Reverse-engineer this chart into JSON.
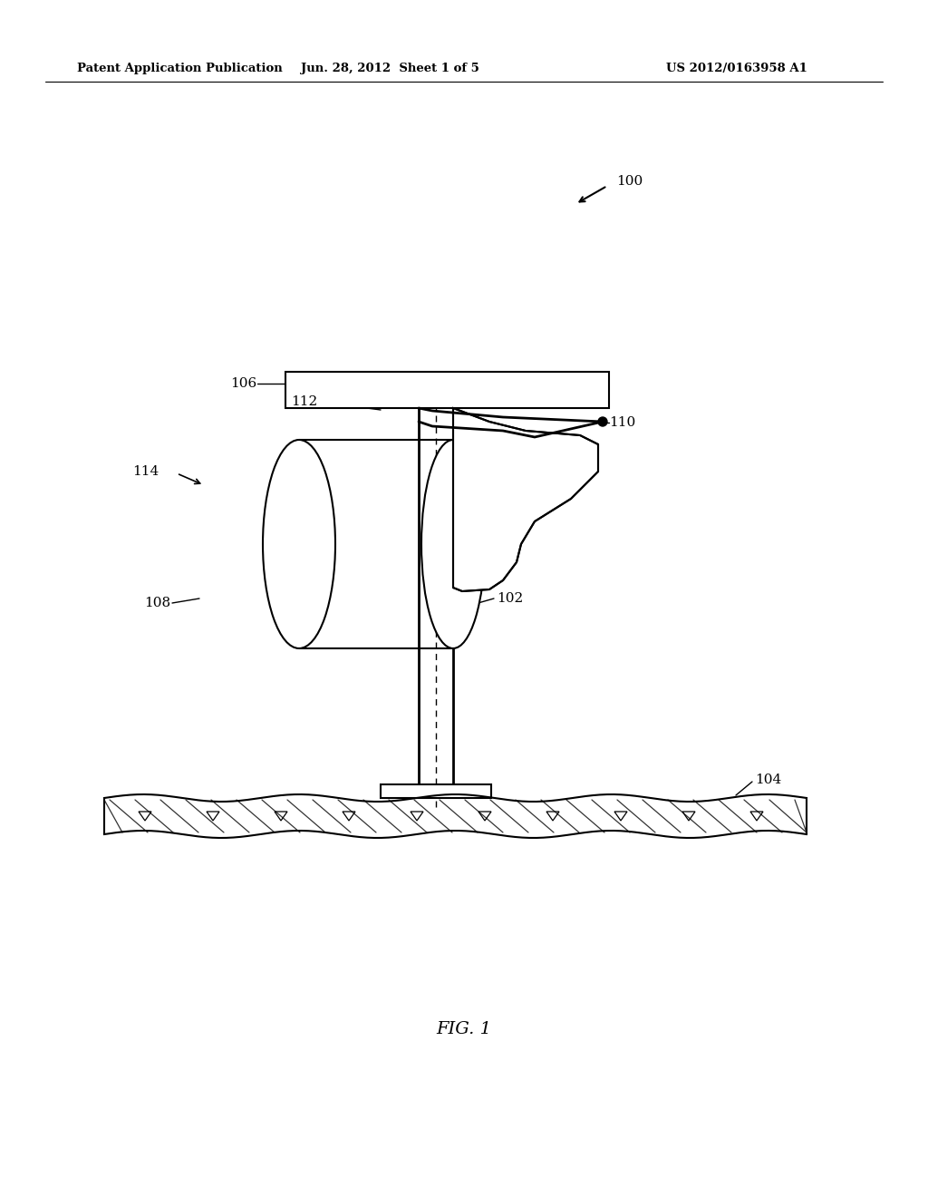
{
  "header_left": "Patent Application Publication",
  "header_center": "Jun. 28, 2012  Sheet 1 of 5",
  "header_right": "US 2012/0163958 A1",
  "figure_label": "FIG. 1",
  "bg_color": "#ffffff",
  "line_color": "#000000"
}
